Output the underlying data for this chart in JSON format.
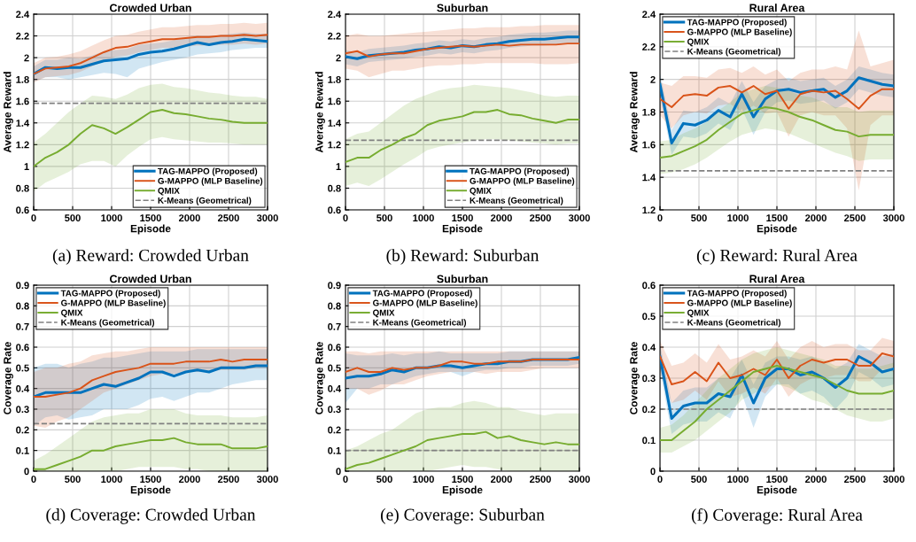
{
  "chart_data": [
    {
      "type": "line",
      "title": "Crowded Urban",
      "xlabel": "Episode",
      "ylabel": "Average Reward",
      "annotations": [
        "(a) Reward: Crowded Urban"
      ],
      "x": [
        0,
        150,
        300,
        450,
        600,
        750,
        900,
        1050,
        1200,
        1350,
        1500,
        1650,
        1800,
        1950,
        2100,
        2250,
        2400,
        2550,
        2700,
        2850,
        3000
      ],
      "xlim": [
        0,
        3000
      ],
      "xticks": [
        0,
        500,
        1000,
        1500,
        2000,
        2500,
        3000
      ],
      "ylim": [
        0.6,
        2.4
      ],
      "yticks": [
        0.6,
        0.8,
        1,
        1.2,
        1.4,
        1.6,
        1.8,
        2,
        2.2,
        2.4
      ],
      "grid": true,
      "legend": "bottom right",
      "line_style": "solid",
      "series": [
        {
          "name": "TAG-MAPPO (Proposed)",
          "color": "#0072bd",
          "values": [
            1.85,
            1.91,
            1.9,
            1.91,
            1.91,
            1.94,
            1.97,
            1.98,
            1.99,
            2.03,
            2.05,
            2.06,
            2.08,
            2.11,
            2.14,
            2.12,
            2.14,
            2.15,
            2.17,
            2.16,
            2.15
          ],
          "lower": [
            1.78,
            1.82,
            1.82,
            1.8,
            1.82,
            1.84,
            1.86,
            1.85,
            1.82,
            1.9,
            1.93,
            1.96,
            1.98,
            2.0,
            2.03,
            2.04,
            2.05,
            2.07,
            2.08,
            2.09,
            2.09
          ],
          "upper": [
            1.92,
            1.98,
            1.98,
            2.0,
            1.99,
            2.02,
            2.06,
            2.07,
            2.08,
            2.12,
            2.13,
            2.14,
            2.16,
            2.18,
            2.2,
            2.19,
            2.21,
            2.22,
            2.23,
            2.22,
            2.22
          ]
        },
        {
          "name": "G-MAPPO (MLP Baseline)",
          "color": "#d95319",
          "values": [
            1.85,
            1.9,
            1.91,
            1.92,
            1.95,
            2.0,
            2.05,
            2.09,
            2.1,
            2.13,
            2.15,
            2.17,
            2.17,
            2.18,
            2.19,
            2.19,
            2.2,
            2.2,
            2.21,
            2.2,
            2.21
          ],
          "lower": [
            1.77,
            1.82,
            1.83,
            1.84,
            1.87,
            1.92,
            1.97,
            2.01,
            2.02,
            2.05,
            2.07,
            2.09,
            2.09,
            2.1,
            2.11,
            2.11,
            2.12,
            2.12,
            2.13,
            2.12,
            2.13
          ],
          "upper": [
            1.95,
            2.0,
            2.01,
            2.03,
            2.06,
            2.11,
            2.16,
            2.2,
            2.21,
            2.24,
            2.26,
            2.28,
            2.28,
            2.29,
            2.3,
            2.3,
            2.31,
            2.31,
            2.32,
            2.31,
            2.32
          ]
        },
        {
          "name": "QMIX",
          "color": "#77ac30",
          "values": [
            1.0,
            1.08,
            1.13,
            1.2,
            1.3,
            1.38,
            1.35,
            1.3,
            1.36,
            1.43,
            1.5,
            1.52,
            1.49,
            1.48,
            1.46,
            1.44,
            1.43,
            1.41,
            1.4,
            1.4,
            1.4
          ],
          "lower": [
            0.77,
            0.85,
            0.9,
            0.95,
            1.02,
            1.05,
            1.05,
            1.0,
            1.1,
            1.18,
            1.25,
            1.27,
            1.25,
            1.24,
            1.23,
            1.22,
            1.22,
            1.21,
            1.2,
            1.2,
            1.2
          ],
          "upper": [
            1.22,
            1.3,
            1.4,
            1.5,
            1.58,
            1.65,
            1.64,
            1.62,
            1.66,
            1.72,
            1.75,
            1.76,
            1.73,
            1.72,
            1.7,
            1.68,
            1.67,
            1.65,
            1.64,
            1.64,
            1.62
          ]
        }
      ],
      "ref_lines": [
        {
          "axis": "y",
          "value": 1.58,
          "label": "K-Means (Geometrical)",
          "color": "#808080",
          "line_style": "dashed"
        }
      ]
    },
    {
      "type": "line",
      "title": "Suburban",
      "xlabel": "Episode",
      "ylabel": "Average Reward",
      "annotations": [
        "(b) Reward: Suburban"
      ],
      "x": [
        0,
        150,
        300,
        450,
        600,
        750,
        900,
        1050,
        1200,
        1350,
        1500,
        1650,
        1800,
        1950,
        2100,
        2250,
        2400,
        2550,
        2700,
        2850,
        3000
      ],
      "xlim": [
        0,
        3000
      ],
      "xticks": [
        0,
        500,
        1000,
        1500,
        2000,
        2500,
        3000
      ],
      "ylim": [
        0.6,
        2.4
      ],
      "yticks": [
        0.6,
        0.8,
        1,
        1.2,
        1.4,
        1.6,
        1.8,
        2,
        2.2,
        2.4
      ],
      "grid": true,
      "legend": "bottom right",
      "line_style": "solid",
      "series": [
        {
          "name": "TAG-MAPPO (Proposed)",
          "color": "#0072bd",
          "values": [
            2.01,
            1.99,
            2.02,
            2.03,
            2.04,
            2.05,
            2.07,
            2.08,
            2.1,
            2.09,
            2.11,
            2.1,
            2.12,
            2.13,
            2.15,
            2.16,
            2.17,
            2.17,
            2.18,
            2.19,
            2.19
          ],
          "lower": [
            1.94,
            1.92,
            1.96,
            1.97,
            1.98,
            1.99,
            2.01,
            2.02,
            2.04,
            2.03,
            2.05,
            2.04,
            2.06,
            2.07,
            2.09,
            2.1,
            2.11,
            2.11,
            2.12,
            2.13,
            2.13
          ],
          "upper": [
            2.07,
            2.05,
            2.08,
            2.09,
            2.1,
            2.11,
            2.13,
            2.14,
            2.16,
            2.15,
            2.17,
            2.16,
            2.18,
            2.19,
            2.21,
            2.22,
            2.23,
            2.23,
            2.24,
            2.25,
            2.25
          ]
        },
        {
          "name": "G-MAPPO (MLP Baseline)",
          "color": "#d95319",
          "values": [
            2.04,
            2.06,
            2.01,
            2.03,
            2.04,
            2.04,
            2.06,
            2.08,
            2.09,
            2.1,
            2.11,
            2.1,
            2.11,
            2.12,
            2.11,
            2.12,
            2.12,
            2.12,
            2.12,
            2.13,
            2.13
          ],
          "lower": [
            1.9,
            1.88,
            1.82,
            1.85,
            1.88,
            1.88,
            1.9,
            1.92,
            1.93,
            1.93,
            1.94,
            1.94,
            1.95,
            1.95,
            1.95,
            1.95,
            1.95,
            1.94,
            1.94,
            1.94,
            1.95
          ],
          "upper": [
            2.2,
            2.22,
            2.2,
            2.2,
            2.21,
            2.22,
            2.23,
            2.24,
            2.25,
            2.26,
            2.27,
            2.27,
            2.28,
            2.28,
            2.28,
            2.29,
            2.29,
            2.3,
            2.3,
            2.3,
            2.3
          ]
        },
        {
          "name": "QMIX",
          "color": "#77ac30",
          "values": [
            1.04,
            1.08,
            1.08,
            1.15,
            1.2,
            1.26,
            1.3,
            1.38,
            1.42,
            1.44,
            1.46,
            1.5,
            1.5,
            1.52,
            1.48,
            1.47,
            1.44,
            1.42,
            1.4,
            1.43,
            1.43
          ],
          "lower": [
            0.82,
            0.85,
            0.82,
            0.88,
            0.95,
            1.02,
            1.08,
            1.15,
            1.18,
            1.2,
            1.22,
            1.24,
            1.25,
            1.25,
            1.24,
            1.23,
            1.22,
            1.21,
            1.2,
            1.21,
            1.21
          ],
          "upper": [
            1.25,
            1.3,
            1.32,
            1.4,
            1.48,
            1.56,
            1.62,
            1.66,
            1.7,
            1.72,
            1.73,
            1.75,
            1.74,
            1.73,
            1.72,
            1.7,
            1.68,
            1.65,
            1.64,
            1.65,
            1.65
          ]
        }
      ],
      "ref_lines": [
        {
          "axis": "y",
          "value": 1.24,
          "label": "K-Means (Geometrical)",
          "color": "#808080",
          "line_style": "dashed"
        }
      ]
    },
    {
      "type": "line",
      "title": "Rural Area",
      "xlabel": "Episode",
      "ylabel": "Average Reward",
      "annotations": [
        "(c) Reward: Rural Area"
      ],
      "x": [
        0,
        150,
        300,
        450,
        600,
        750,
        900,
        1050,
        1200,
        1350,
        1500,
        1650,
        1800,
        1950,
        2100,
        2250,
        2400,
        2550,
        2700,
        2850,
        3000
      ],
      "xlim": [
        0,
        3000
      ],
      "xticks": [
        0,
        500,
        1000,
        1500,
        2000,
        2500,
        3000
      ],
      "ylim": [
        1.2,
        2.4
      ],
      "yticks": [
        1.2,
        1.4,
        1.6,
        1.8,
        2,
        2.2,
        2.4
      ],
      "grid": true,
      "legend": "top left",
      "line_style": "solid",
      "series": [
        {
          "name": "TAG-MAPPO (Proposed)",
          "color": "#0072bd",
          "values": [
            1.97,
            1.61,
            1.73,
            1.72,
            1.75,
            1.81,
            1.77,
            1.91,
            1.77,
            1.88,
            1.93,
            1.94,
            1.92,
            1.93,
            1.94,
            1.89,
            1.93,
            2.01,
            1.99,
            1.97,
            1.96
          ],
          "lower": [
            1.9,
            1.54,
            1.65,
            1.64,
            1.67,
            1.73,
            1.69,
            1.82,
            1.66,
            1.8,
            1.86,
            1.87,
            1.85,
            1.86,
            1.87,
            1.82,
            1.86,
            1.94,
            1.92,
            1.9,
            1.89
          ],
          "upper": [
            2.04,
            1.69,
            1.81,
            1.8,
            1.83,
            1.89,
            1.85,
            1.99,
            1.86,
            1.96,
            2.0,
            2.01,
            1.99,
            2.0,
            2.01,
            1.96,
            2.0,
            2.08,
            2.06,
            2.04,
            2.03
          ]
        },
        {
          "name": "G-MAPPO (MLP Baseline)",
          "color": "#d95319",
          "values": [
            1.88,
            1.83,
            1.9,
            1.91,
            1.9,
            1.95,
            1.96,
            1.92,
            1.96,
            1.91,
            1.93,
            1.82,
            1.91,
            1.93,
            1.92,
            1.93,
            1.88,
            1.82,
            1.9,
            1.94,
            1.94
          ],
          "lower": [
            1.78,
            1.7,
            1.78,
            1.8,
            1.79,
            1.84,
            1.85,
            1.8,
            1.84,
            1.79,
            1.8,
            1.65,
            1.78,
            1.8,
            1.78,
            1.78,
            1.7,
            1.32,
            1.72,
            1.78,
            1.78
          ],
          "upper": [
            1.98,
            1.96,
            2.02,
            2.02,
            2.01,
            2.06,
            2.07,
            2.04,
            2.08,
            2.03,
            2.06,
            1.99,
            2.04,
            2.06,
            2.06,
            2.08,
            2.06,
            2.3,
            2.08,
            2.1,
            2.12
          ]
        },
        {
          "name": "QMIX",
          "color": "#77ac30",
          "values": [
            1.52,
            1.53,
            1.56,
            1.59,
            1.63,
            1.69,
            1.74,
            1.79,
            1.81,
            1.83,
            1.82,
            1.8,
            1.77,
            1.75,
            1.72,
            1.69,
            1.68,
            1.65,
            1.66,
            1.66,
            1.66
          ],
          "lower": [
            1.42,
            1.43,
            1.45,
            1.48,
            1.52,
            1.57,
            1.62,
            1.66,
            1.68,
            1.7,
            1.69,
            1.67,
            1.64,
            1.61,
            1.58,
            1.55,
            1.53,
            1.5,
            1.51,
            1.51,
            1.51
          ],
          "upper": [
            1.62,
            1.63,
            1.67,
            1.7,
            1.74,
            1.81,
            1.86,
            1.92,
            1.94,
            1.96,
            1.95,
            1.93,
            1.9,
            1.89,
            1.86,
            1.83,
            1.83,
            1.8,
            1.81,
            1.81,
            1.81
          ]
        }
      ],
      "ref_lines": [
        {
          "axis": "y",
          "value": 1.44,
          "label": "K-Means (Geometrical)",
          "color": "#808080",
          "line_style": "dashed"
        }
      ]
    },
    {
      "type": "line",
      "title": "Crowded Urban",
      "xlabel": "Episode",
      "ylabel": "Coverage Rate",
      "annotations": [
        "(d) Coverage: Crowded Urban"
      ],
      "x": [
        0,
        150,
        300,
        450,
        600,
        750,
        900,
        1050,
        1200,
        1350,
        1500,
        1650,
        1800,
        1950,
        2100,
        2250,
        2400,
        2550,
        2700,
        2850,
        3000
      ],
      "xlim": [
        0,
        3000
      ],
      "xticks": [
        0,
        500,
        1000,
        1500,
        2000,
        2500,
        3000
      ],
      "ylim": [
        0,
        0.9
      ],
      "yticks": [
        0,
        0.1,
        0.2,
        0.3,
        0.4,
        0.5,
        0.6,
        0.7,
        0.8,
        0.9
      ],
      "grid": true,
      "legend": "top left",
      "line_style": "solid",
      "series": [
        {
          "name": "TAG-MAPPO (Proposed)",
          "color": "#0072bd",
          "values": [
            0.36,
            0.38,
            0.38,
            0.38,
            0.38,
            0.4,
            0.42,
            0.41,
            0.43,
            0.45,
            0.48,
            0.48,
            0.46,
            0.48,
            0.49,
            0.48,
            0.5,
            0.5,
            0.5,
            0.51,
            0.51
          ],
          "lower": [
            0.22,
            0.26,
            0.27,
            0.25,
            0.26,
            0.27,
            0.3,
            0.3,
            0.3,
            0.32,
            0.35,
            0.36,
            0.34,
            0.36,
            0.38,
            0.38,
            0.4,
            0.42,
            0.43,
            0.44,
            0.44
          ],
          "upper": [
            0.5,
            0.52,
            0.52,
            0.5,
            0.52,
            0.53,
            0.55,
            0.55,
            0.56,
            0.57,
            0.58,
            0.58,
            0.58,
            0.58,
            0.59,
            0.59,
            0.59,
            0.59,
            0.59,
            0.59,
            0.59
          ]
        },
        {
          "name": "G-MAPPO (MLP Baseline)",
          "color": "#d95319",
          "values": [
            0.36,
            0.36,
            0.37,
            0.38,
            0.4,
            0.44,
            0.46,
            0.48,
            0.49,
            0.5,
            0.52,
            0.52,
            0.52,
            0.53,
            0.53,
            0.53,
            0.54,
            0.53,
            0.54,
            0.54,
            0.54
          ],
          "lower": [
            0.22,
            0.21,
            0.24,
            0.26,
            0.3,
            0.34,
            0.38,
            0.4,
            0.42,
            0.44,
            0.46,
            0.47,
            0.47,
            0.48,
            0.48,
            0.48,
            0.49,
            0.49,
            0.49,
            0.5,
            0.5
          ],
          "upper": [
            0.48,
            0.5,
            0.5,
            0.52,
            0.53,
            0.56,
            0.57,
            0.58,
            0.58,
            0.59,
            0.6,
            0.6,
            0.6,
            0.6,
            0.6,
            0.6,
            0.6,
            0.6,
            0.6,
            0.6,
            0.6
          ]
        },
        {
          "name": "QMIX",
          "color": "#77ac30",
          "values": [
            0.01,
            0.01,
            0.03,
            0.05,
            0.07,
            0.1,
            0.1,
            0.12,
            0.13,
            0.14,
            0.15,
            0.15,
            0.16,
            0.14,
            0.13,
            0.13,
            0.13,
            0.11,
            0.11,
            0.11,
            0.12
          ],
          "lower": [
            0,
            0,
            0,
            0,
            0,
            0,
            0,
            0,
            0.01,
            0.02,
            0.02,
            0.02,
            0.02,
            0.01,
            0.01,
            0,
            0,
            0,
            0,
            0,
            0
          ],
          "upper": [
            0.05,
            0.08,
            0.12,
            0.16,
            0.2,
            0.24,
            0.26,
            0.27,
            0.28,
            0.28,
            0.3,
            0.3,
            0.3,
            0.28,
            0.27,
            0.27,
            0.27,
            0.26,
            0.26,
            0.26,
            0.27
          ]
        }
      ],
      "ref_lines": [
        {
          "axis": "y",
          "value": 0.23,
          "label": "K-Means (Geometrical)",
          "color": "#808080",
          "line_style": "dashed"
        }
      ]
    },
    {
      "type": "line",
      "title": "Suburban",
      "xlabel": "Episode",
      "ylabel": "Coverage Rate",
      "annotations": [
        "(e) Coverage: Suburban"
      ],
      "x": [
        0,
        150,
        300,
        450,
        600,
        750,
        900,
        1050,
        1200,
        1350,
        1500,
        1650,
        1800,
        1950,
        2100,
        2250,
        2400,
        2550,
        2700,
        2850,
        3000
      ],
      "xlim": [
        0,
        3000
      ],
      "xticks": [
        0,
        500,
        1000,
        1500,
        2000,
        2500,
        3000
      ],
      "ylim": [
        0,
        0.9
      ],
      "yticks": [
        0,
        0.1,
        0.2,
        0.3,
        0.4,
        0.5,
        0.6,
        0.7,
        0.8,
        0.9
      ],
      "grid": true,
      "legend": "top left",
      "line_style": "solid",
      "series": [
        {
          "name": "TAG-MAPPO (Proposed)",
          "color": "#0072bd",
          "values": [
            0.45,
            0.46,
            0.46,
            0.47,
            0.49,
            0.48,
            0.5,
            0.5,
            0.51,
            0.51,
            0.5,
            0.51,
            0.52,
            0.52,
            0.53,
            0.53,
            0.54,
            0.54,
            0.54,
            0.54,
            0.55
          ],
          "lower": [
            0.33,
            0.4,
            0.4,
            0.42,
            0.42,
            0.44,
            0.46,
            0.47,
            0.48,
            0.48,
            0.46,
            0.48,
            0.49,
            0.49,
            0.5,
            0.5,
            0.51,
            0.51,
            0.51,
            0.51,
            0.52
          ],
          "upper": [
            0.57,
            0.56,
            0.56,
            0.56,
            0.57,
            0.56,
            0.57,
            0.57,
            0.58,
            0.57,
            0.57,
            0.57,
            0.57,
            0.57,
            0.58,
            0.58,
            0.58,
            0.58,
            0.58,
            0.58,
            0.58
          ]
        },
        {
          "name": "G-MAPPO (MLP Baseline)",
          "color": "#d95319",
          "values": [
            0.48,
            0.5,
            0.48,
            0.48,
            0.5,
            0.49,
            0.5,
            0.5,
            0.51,
            0.53,
            0.53,
            0.52,
            0.52,
            0.53,
            0.53,
            0.53,
            0.54,
            0.54,
            0.54,
            0.54,
            0.54
          ],
          "lower": [
            0.4,
            0.4,
            0.37,
            0.39,
            0.42,
            0.42,
            0.44,
            0.46,
            0.47,
            0.48,
            0.48,
            0.48,
            0.47,
            0.48,
            0.48,
            0.48,
            0.49,
            0.5,
            0.5,
            0.5,
            0.5
          ],
          "upper": [
            0.58,
            0.58,
            0.57,
            0.58,
            0.58,
            0.58,
            0.58,
            0.58,
            0.58,
            0.58,
            0.58,
            0.58,
            0.58,
            0.58,
            0.58,
            0.58,
            0.58,
            0.58,
            0.58,
            0.58,
            0.58
          ]
        },
        {
          "name": "QMIX",
          "color": "#77ac30",
          "values": [
            0.01,
            0.03,
            0.04,
            0.06,
            0.08,
            0.1,
            0.12,
            0.15,
            0.16,
            0.17,
            0.18,
            0.18,
            0.19,
            0.16,
            0.17,
            0.15,
            0.14,
            0.13,
            0.14,
            0.13,
            0.13
          ],
          "lower": [
            0,
            0,
            0,
            0,
            0,
            0,
            0,
            0,
            0.01,
            0.02,
            0.03,
            0.02,
            0.02,
            0.01,
            0,
            0,
            0,
            0,
            0,
            0,
            0
          ],
          "upper": [
            0.1,
            0.12,
            0.15,
            0.18,
            0.2,
            0.24,
            0.28,
            0.3,
            0.31,
            0.31,
            0.33,
            0.34,
            0.33,
            0.31,
            0.31,
            0.29,
            0.28,
            0.27,
            0.28,
            0.28,
            0.28
          ]
        }
      ],
      "ref_lines": [
        {
          "axis": "y",
          "value": 0.1,
          "label": "K-Means (Geometrical)",
          "color": "#808080",
          "line_style": "dashed"
        }
      ]
    },
    {
      "type": "line",
      "title": "Rural Area",
      "xlabel": "Episode",
      "ylabel": "Coverage Rate",
      "annotations": [
        "(f) Coverage: Rural Area"
      ],
      "x": [
        0,
        150,
        300,
        450,
        600,
        750,
        900,
        1050,
        1200,
        1350,
        1500,
        1650,
        1800,
        1950,
        2100,
        2250,
        2400,
        2550,
        2700,
        2850,
        3000
      ],
      "xlim": [
        0,
        3000
      ],
      "xticks": [
        0,
        500,
        1000,
        1500,
        2000,
        2500,
        3000
      ],
      "ylim": [
        0,
        0.6
      ],
      "yticks": [
        0,
        0.1,
        0.2,
        0.3,
        0.4,
        0.5,
        0.6
      ],
      "grid": true,
      "legend": "top left",
      "line_style": "solid",
      "series": [
        {
          "name": "TAG-MAPPO (Proposed)",
          "color": "#0072bd",
          "values": [
            0.37,
            0.17,
            0.21,
            0.22,
            0.22,
            0.25,
            0.24,
            0.31,
            0.22,
            0.3,
            0.33,
            0.33,
            0.31,
            0.32,
            0.3,
            0.27,
            0.3,
            0.37,
            0.35,
            0.32,
            0.33
          ],
          "lower": [
            0.33,
            0.12,
            0.15,
            0.16,
            0.16,
            0.19,
            0.17,
            0.25,
            0.14,
            0.24,
            0.28,
            0.28,
            0.25,
            0.26,
            0.24,
            0.2,
            0.24,
            0.32,
            0.3,
            0.27,
            0.28
          ],
          "upper": [
            0.41,
            0.22,
            0.26,
            0.27,
            0.27,
            0.3,
            0.3,
            0.36,
            0.28,
            0.35,
            0.37,
            0.37,
            0.36,
            0.37,
            0.35,
            0.33,
            0.35,
            0.41,
            0.39,
            0.37,
            0.38
          ]
        },
        {
          "name": "G-MAPPO (MLP Baseline)",
          "color": "#d95319",
          "values": [
            0.37,
            0.28,
            0.29,
            0.32,
            0.29,
            0.35,
            0.3,
            0.31,
            0.33,
            0.31,
            0.36,
            0.3,
            0.34,
            0.36,
            0.35,
            0.36,
            0.36,
            0.34,
            0.34,
            0.38,
            0.37
          ],
          "lower": [
            0.32,
            0.22,
            0.23,
            0.26,
            0.23,
            0.29,
            0.24,
            0.25,
            0.27,
            0.25,
            0.3,
            0.24,
            0.28,
            0.3,
            0.3,
            0.31,
            0.31,
            0.29,
            0.29,
            0.33,
            0.32
          ],
          "upper": [
            0.42,
            0.34,
            0.35,
            0.38,
            0.35,
            0.41,
            0.36,
            0.37,
            0.39,
            0.37,
            0.42,
            0.36,
            0.4,
            0.42,
            0.4,
            0.41,
            0.41,
            0.39,
            0.39,
            0.43,
            0.42
          ]
        },
        {
          "name": "QMIX",
          "color": "#77ac30",
          "values": [
            0.1,
            0.1,
            0.13,
            0.16,
            0.2,
            0.23,
            0.26,
            0.29,
            0.32,
            0.33,
            0.34,
            0.33,
            0.32,
            0.31,
            0.3,
            0.28,
            0.26,
            0.25,
            0.25,
            0.25,
            0.26
          ],
          "lower": [
            0.06,
            0.06,
            0.08,
            0.1,
            0.13,
            0.16,
            0.19,
            0.23,
            0.25,
            0.27,
            0.28,
            0.27,
            0.25,
            0.23,
            0.22,
            0.2,
            0.18,
            0.17,
            0.16,
            0.16,
            0.17
          ],
          "upper": [
            0.14,
            0.15,
            0.18,
            0.22,
            0.26,
            0.3,
            0.33,
            0.36,
            0.38,
            0.39,
            0.4,
            0.39,
            0.38,
            0.37,
            0.36,
            0.34,
            0.34,
            0.33,
            0.33,
            0.34,
            0.35
          ]
        }
      ],
      "ref_lines": [
        {
          "axis": "y",
          "value": 0.2,
          "label": "K-Means (Geometrical)",
          "color": "#808080",
          "line_style": "dashed"
        }
      ]
    }
  ]
}
